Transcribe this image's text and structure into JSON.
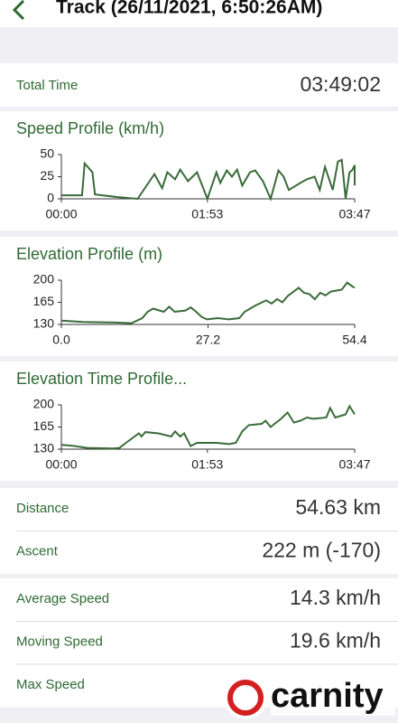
{
  "header": {
    "title": "Track (26/11/2021, 6:50:26AM)"
  },
  "summary": {
    "label": "Total Time",
    "value": "03:49:02"
  },
  "chart_data": [
    {
      "type": "line",
      "title": "Speed Profile (km/h)",
      "color": "#3a6b3a",
      "x": [
        0,
        14,
        16,
        18,
        24,
        26,
        43,
        59,
        72,
        78,
        82,
        88,
        92,
        98,
        105,
        113,
        120,
        123,
        128,
        132,
        136,
        140,
        146,
        150,
        156,
        162,
        168,
        172,
        176,
        185,
        190,
        196,
        200,
        204,
        210,
        214,
        217,
        220,
        223,
        225,
        227,
        227
      ],
      "values": [
        4,
        4,
        4,
        40,
        30,
        5,
        2,
        0,
        28,
        12,
        30,
        22,
        33,
        20,
        30,
        0,
        30,
        18,
        32,
        25,
        33,
        15,
        30,
        32,
        20,
        0,
        32,
        25,
        10,
        18,
        22,
        25,
        10,
        36,
        10,
        42,
        44,
        0,
        30,
        32,
        38,
        15
      ],
      "xlim": [
        0,
        227
      ],
      "ylim": [
        0,
        50
      ],
      "xticks": [
        {
          "value": 0,
          "label": "00:00"
        },
        {
          "value": 113,
          "label": "01:53"
        },
        {
          "value": 227,
          "label": "03:47"
        }
      ],
      "yticks": [
        0,
        25,
        50
      ]
    },
    {
      "type": "line",
      "title": "Elevation Profile (m)",
      "color": "#3a6b3a",
      "x": [
        0,
        4,
        10,
        13,
        15,
        16,
        17,
        19,
        20,
        21,
        23,
        24,
        25,
        26,
        27,
        29,
        31,
        33,
        34,
        36,
        38,
        39,
        40,
        41,
        42,
        44,
        45,
        46,
        47,
        48,
        49,
        50,
        52,
        53,
        54,
        54.4
      ],
      "values": [
        136,
        134,
        133,
        132,
        140,
        150,
        155,
        150,
        158,
        150,
        152,
        157,
        150,
        142,
        138,
        140,
        138,
        140,
        150,
        160,
        168,
        163,
        170,
        165,
        175,
        188,
        180,
        178,
        170,
        180,
        176,
        182,
        185,
        196,
        190,
        188
      ],
      "xlim": [
        0,
        54.4
      ],
      "ylim": [
        130,
        200
      ],
      "xticks": [
        {
          "value": 0,
          "label": "0.0"
        },
        27.2,
        54.4
      ],
      "yticks": [
        130,
        165,
        200
      ]
    },
    {
      "type": "line",
      "title": "Elevation Time Profile...",
      "color": "#3a6b3a",
      "x": [
        0,
        10,
        20,
        40,
        45,
        50,
        60,
        62,
        65,
        75,
        85,
        88,
        92,
        95,
        100,
        105,
        120,
        130,
        135,
        140,
        145,
        155,
        158,
        162,
        165,
        170,
        175,
        180,
        185,
        190,
        195,
        205,
        208,
        212,
        220,
        223,
        227
      ],
      "values": [
        137,
        135,
        132,
        131,
        132,
        140,
        155,
        150,
        157,
        155,
        150,
        158,
        150,
        155,
        135,
        140,
        140,
        138,
        140,
        158,
        168,
        170,
        175,
        165,
        170,
        178,
        188,
        172,
        175,
        180,
        178,
        180,
        195,
        180,
        185,
        198,
        185
      ],
      "xlim": [
        0,
        227
      ],
      "ylim": [
        130,
        200
      ],
      "xticks": [
        {
          "value": 0,
          "label": "00:00"
        },
        {
          "value": 113,
          "label": "01:53"
        },
        {
          "value": 227,
          "label": "03:47"
        }
      ],
      "yticks": [
        130,
        165,
        200
      ]
    }
  ],
  "stats": [
    [
      {
        "label": "Distance",
        "value": "54.63 km"
      },
      {
        "label": "Ascent",
        "value": "222 m (-170)"
      }
    ],
    [
      {
        "label": "Average Speed",
        "value": "14.3 km/h"
      },
      {
        "label": "Moving Speed",
        "value": "19.6 km/h"
      },
      {
        "label": "Max Speed"
      }
    ]
  ],
  "watermark": "carnity"
}
